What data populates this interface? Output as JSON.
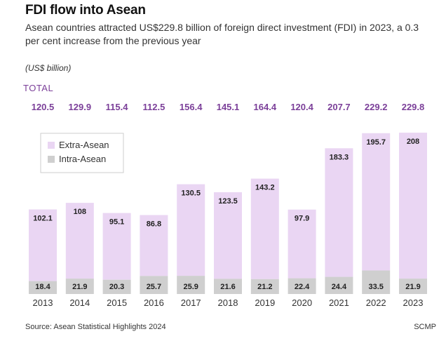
{
  "title": "FDI flow into Asean",
  "subtitle": "Asean countries attracted US$229.8 billion of foreign direct investment (FDI) in 2023, a 0.3 per cent increase from the previous year",
  "unit_note": "(US$ billion)",
  "total_label": "TOTAL",
  "source": "Source: Asean Statistical Highlights 2024",
  "credit": "SCMP",
  "colors": {
    "extra": "#ead6f3",
    "intra": "#cfcfcf",
    "total": "#7b3f99"
  },
  "chart_data": {
    "type": "bar",
    "stacked": true,
    "categories": [
      "2013",
      "2014",
      "2015",
      "2016",
      "2017",
      "2018",
      "2019",
      "2020",
      "2021",
      "2022",
      "2023"
    ],
    "series": [
      {
        "name": "Intra-Asean",
        "values": [
          18.4,
          21.9,
          20.3,
          25.7,
          25.9,
          21.6,
          21.2,
          22.4,
          24.4,
          33.5,
          21.9
        ]
      },
      {
        "name": "Extra-Asean",
        "values": [
          102.1,
          108,
          95.1,
          86.8,
          130.5,
          123.5,
          143.2,
          97.9,
          183.3,
          195.7,
          208
        ]
      }
    ],
    "totals": [
      120.5,
      129.9,
      115.4,
      112.5,
      156.4,
      145.1,
      164.4,
      120.4,
      207.7,
      229.2,
      229.8
    ],
    "ylim": [
      0,
      230
    ],
    "grid": false,
    "legend_position": "top-left"
  }
}
